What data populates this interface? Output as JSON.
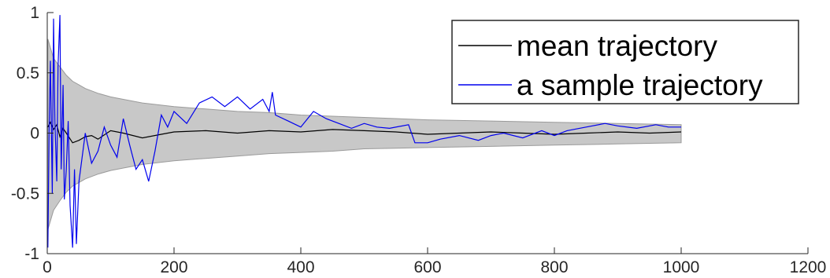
{
  "chart_data": {
    "type": "line",
    "title": "",
    "xlabel": "",
    "ylabel": "",
    "xlim": [
      0,
      1200
    ],
    "ylim": [
      -1,
      1
    ],
    "x_ticks": [
      0,
      200,
      400,
      600,
      800,
      1000,
      1200
    ],
    "y_ticks": [
      -1,
      -0.5,
      0,
      0.5,
      1
    ],
    "grid": false,
    "legend_position": "top-right",
    "band": {
      "color": "#c8c8c8",
      "x": [
        1,
        10,
        20,
        30,
        40,
        50,
        60,
        80,
        100,
        120,
        150,
        200,
        250,
        300,
        350,
        400,
        450,
        500,
        600,
        700,
        800,
        900,
        1000
      ],
      "upper": [
        0.78,
        0.62,
        0.55,
        0.48,
        0.43,
        0.4,
        0.37,
        0.33,
        0.3,
        0.28,
        0.25,
        0.22,
        0.2,
        0.18,
        0.17,
        0.15,
        0.14,
        0.13,
        0.11,
        0.1,
        0.09,
        0.08,
        0.07
      ],
      "lower": [
        -0.8,
        -0.64,
        -0.56,
        -0.49,
        -0.44,
        -0.41,
        -0.38,
        -0.34,
        -0.31,
        -0.29,
        -0.26,
        -0.23,
        -0.21,
        -0.19,
        -0.17,
        -0.16,
        -0.15,
        -0.13,
        -0.12,
        -0.11,
        -0.1,
        -0.09,
        -0.08
      ]
    },
    "series": [
      {
        "name": "mean trajectory",
        "color": "#000000",
        "x": [
          1,
          5,
          10,
          15,
          20,
          25,
          30,
          40,
          50,
          60,
          70,
          80,
          100,
          120,
          150,
          180,
          200,
          250,
          300,
          350,
          400,
          450,
          500,
          550,
          600,
          650,
          700,
          750,
          800,
          850,
          900,
          950,
          1000
        ],
        "values": [
          0.05,
          0.09,
          0.03,
          0.07,
          -0.03,
          0.04,
          0.0,
          -0.08,
          -0.06,
          -0.03,
          -0.02,
          -0.05,
          0.02,
          0.0,
          -0.04,
          -0.01,
          0.01,
          0.02,
          0.0,
          0.02,
          0.01,
          0.03,
          0.02,
          0.01,
          -0.01,
          0.0,
          0.01,
          0.0,
          -0.01,
          0.0,
          0.01,
          0.0,
          0.01
        ]
      },
      {
        "name": "a sample trajectory",
        "color": "#0000ee",
        "x": [
          1,
          3,
          5,
          8,
          10,
          12,
          15,
          17,
          20,
          22,
          25,
          27,
          30,
          33,
          36,
          40,
          43,
          46,
          50,
          55,
          60,
          70,
          80,
          90,
          100,
          110,
          120,
          130,
          140,
          150,
          160,
          170,
          180,
          190,
          200,
          220,
          240,
          260,
          280,
          300,
          320,
          340,
          350,
          355,
          360,
          380,
          400,
          420,
          440,
          460,
          480,
          500,
          520,
          540,
          570,
          580,
          600,
          620,
          650,
          680,
          700,
          720,
          750,
          780,
          800,
          820,
          850,
          880,
          900,
          930,
          960,
          980,
          1000
        ],
        "values": [
          -0.95,
          0.05,
          0.6,
          -0.5,
          0.95,
          0.1,
          -0.4,
          0.55,
          0.98,
          -0.3,
          0.4,
          -0.55,
          -0.3,
          0.1,
          -0.6,
          -0.95,
          -0.3,
          -0.92,
          -0.4,
          -0.2,
          0.0,
          -0.25,
          -0.15,
          0.05,
          -0.1,
          -0.2,
          0.12,
          -0.1,
          -0.3,
          -0.22,
          -0.4,
          -0.15,
          0.15,
          0.05,
          0.18,
          0.08,
          0.25,
          0.3,
          0.22,
          0.3,
          0.2,
          0.28,
          0.18,
          0.34,
          0.15,
          0.1,
          0.05,
          0.18,
          0.12,
          0.08,
          0.04,
          0.08,
          0.05,
          0.04,
          0.07,
          -0.08,
          -0.08,
          -0.05,
          -0.02,
          -0.06,
          -0.02,
          0.0,
          -0.04,
          0.02,
          -0.02,
          0.02,
          0.05,
          0.08,
          0.06,
          0.04,
          0.07,
          0.05,
          0.05
        ]
      }
    ]
  }
}
